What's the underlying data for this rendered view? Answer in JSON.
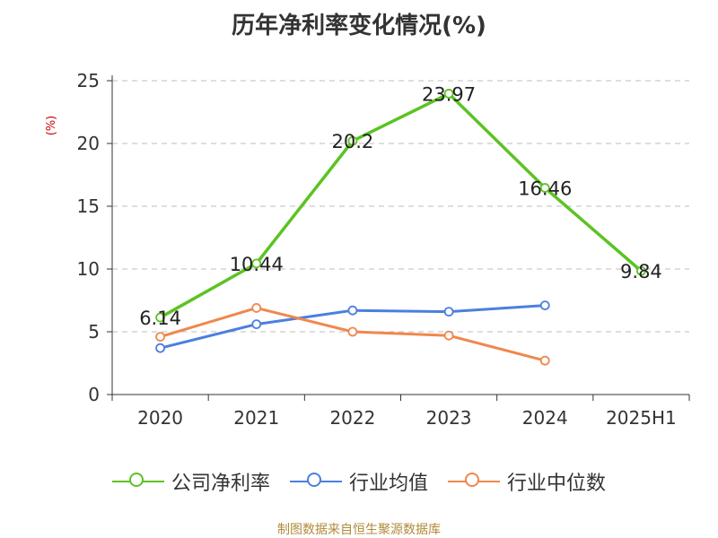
{
  "chart_data": {
    "type": "line",
    "title": "历年净利率变化情况(%)",
    "ylabel": "(%)",
    "categories": [
      "2020",
      "2021",
      "2022",
      "2023",
      "2024",
      "2025H1"
    ],
    "ylim": [
      0,
      25
    ],
    "yticks": [
      0,
      5,
      10,
      15,
      20,
      25
    ],
    "grid": true,
    "legend_position": "bottom",
    "series": [
      {
        "name": "公司净利率",
        "color": "#5cc322",
        "values": [
          6.14,
          10.44,
          20.2,
          23.97,
          16.46,
          9.84
        ],
        "data_labels": [
          "6.14",
          "10.44",
          "20.2",
          "23.97",
          "16.46",
          "9.84"
        ]
      },
      {
        "name": "行业均值",
        "color": "#4a7fe0",
        "values": [
          3.7,
          5.6,
          6.7,
          6.6,
          7.1,
          null
        ]
      },
      {
        "name": "行业中位数",
        "color": "#f0874d",
        "values": [
          4.6,
          6.9,
          5.0,
          4.7,
          2.7,
          null
        ]
      }
    ]
  },
  "footer": {
    "text": "制图数据来自恒生聚源数据库"
  }
}
